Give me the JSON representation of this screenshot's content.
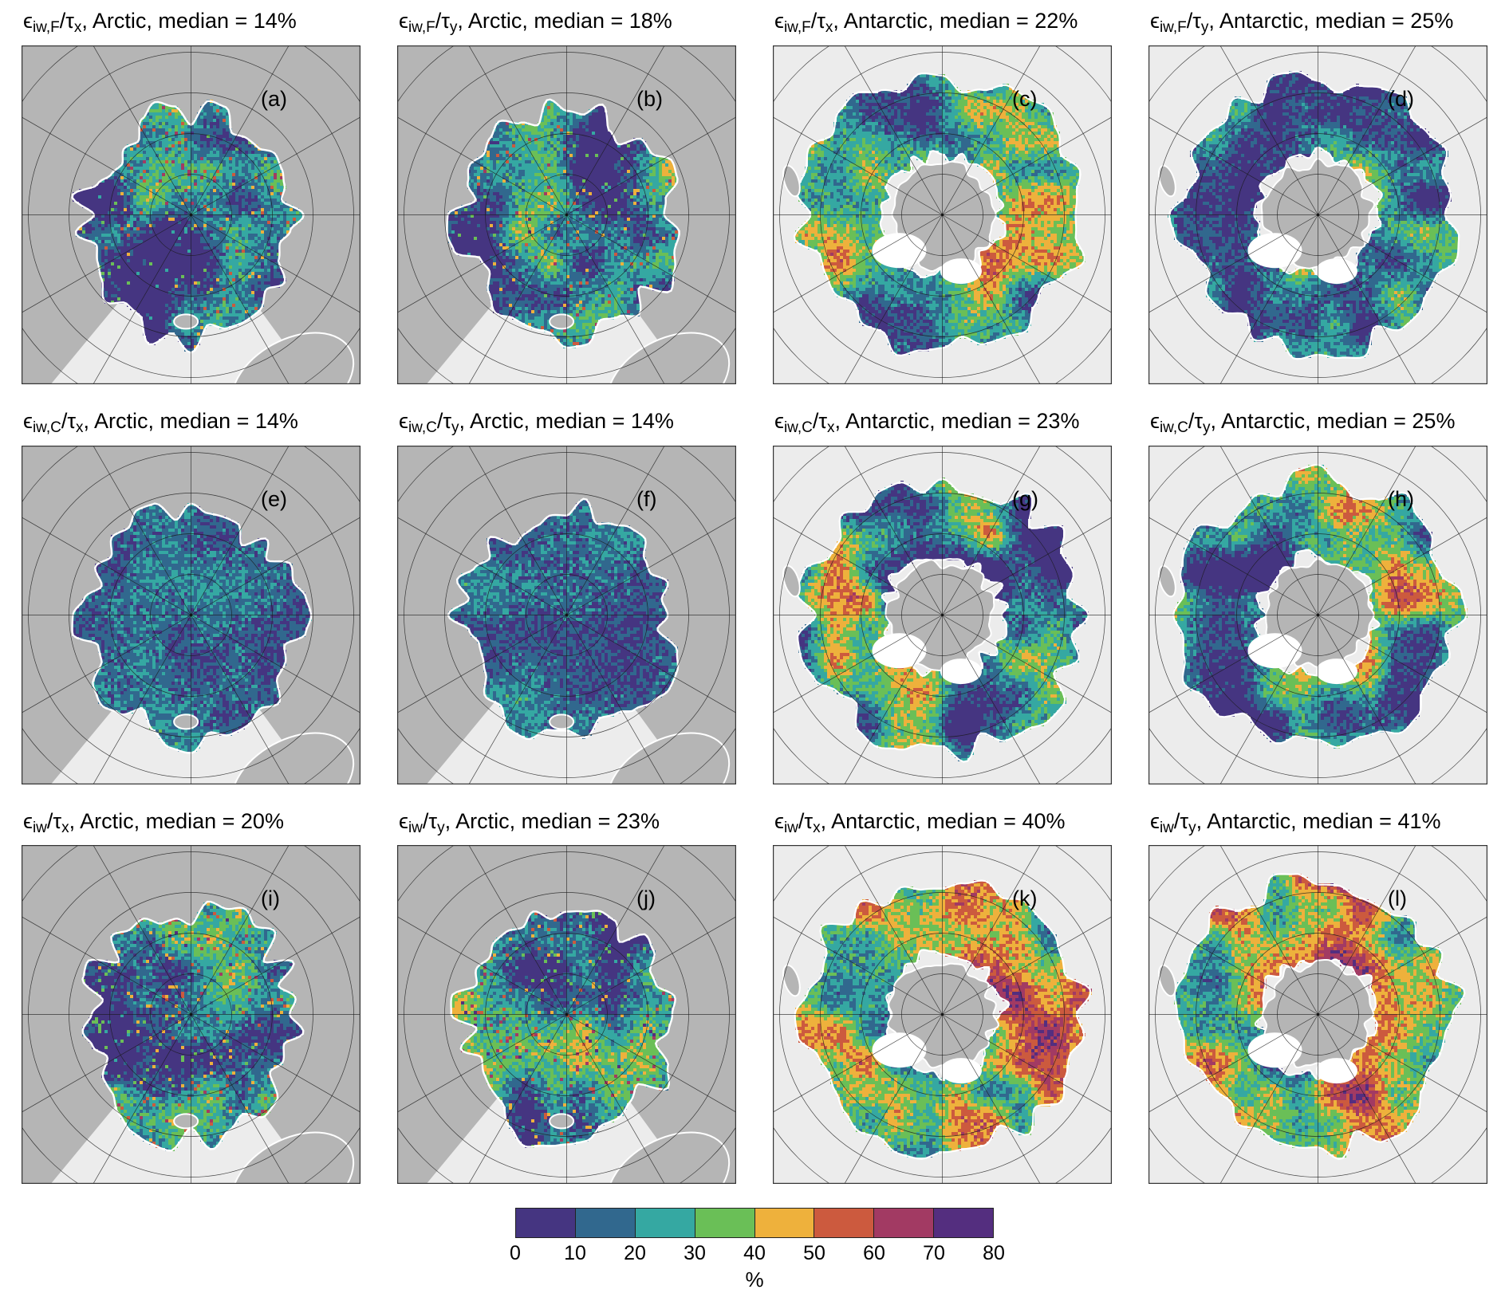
{
  "chart_data": {
    "type": "heatmap",
    "layout": "3x4 grid of polar-stereographic map panels sharing one discrete colorbar",
    "symbols": {
      "epsilon": "ϵ",
      "slash": "/",
      "tau": "τ"
    },
    "panels": [
      {
        "label": "(a)",
        "eps_sub": "iw,F",
        "tau_sub": "x",
        "region": "Arctic",
        "median_percent": 14,
        "rest": ", Arctic, median = 14%"
      },
      {
        "label": "(b)",
        "eps_sub": "iw,F",
        "tau_sub": "y",
        "region": "Arctic",
        "median_percent": 18,
        "rest": ", Arctic, median = 18%"
      },
      {
        "label": "(c)",
        "eps_sub": "iw,F",
        "tau_sub": "x",
        "region": "Antarctic",
        "median_percent": 22,
        "rest": ", Antarctic, median = 22%"
      },
      {
        "label": "(d)",
        "eps_sub": "iw,F",
        "tau_sub": "y",
        "region": "Antarctic",
        "median_percent": 25,
        "rest": ", Antarctic, median = 25%"
      },
      {
        "label": "(e)",
        "eps_sub": "iw,C",
        "tau_sub": "x",
        "region": "Arctic",
        "median_percent": 14,
        "rest": ", Arctic, median = 14%"
      },
      {
        "label": "(f)",
        "eps_sub": "iw,C",
        "tau_sub": "y",
        "region": "Arctic",
        "median_percent": 14,
        "rest": ", Arctic, median = 14%"
      },
      {
        "label": "(g)",
        "eps_sub": "iw,C",
        "tau_sub": "x",
        "region": "Antarctic",
        "median_percent": 23,
        "rest": ", Antarctic, median = 23%"
      },
      {
        "label": "(h)",
        "eps_sub": "iw,C",
        "tau_sub": "y",
        "region": "Antarctic",
        "median_percent": 25,
        "rest": ", Antarctic, median = 25%"
      },
      {
        "label": "(i)",
        "eps_sub": "iw",
        "tau_sub": "x",
        "region": "Arctic",
        "median_percent": 20,
        "rest": ", Arctic, median = 20%"
      },
      {
        "label": "(j)",
        "eps_sub": "iw",
        "tau_sub": "y",
        "region": "Arctic",
        "median_percent": 23,
        "rest": ", Arctic, median = 23%"
      },
      {
        "label": "(k)",
        "eps_sub": "iw",
        "tau_sub": "x",
        "region": "Antarctic",
        "median_percent": 40,
        "rest": ", Antarctic, median = 40%"
      },
      {
        "label": "(l)",
        "eps_sub": "iw",
        "tau_sub": "y",
        "region": "Antarctic",
        "median_percent": 41,
        "rest": ", Antarctic, median = 41%"
      }
    ],
    "colorbar": {
      "ticks": [
        0,
        10,
        20,
        30,
        40,
        50,
        60,
        70,
        80
      ],
      "tick_labels": [
        "0",
        "10",
        "20",
        "30",
        "40",
        "50",
        "60",
        "70",
        "80"
      ],
      "unit": "%",
      "colors": [
        "#453581",
        "#31688e",
        "#35a8a2",
        "#6abf57",
        "#eeb13c",
        "#cc5a3e",
        "#a23a63",
        "#542e7f"
      ]
    }
  },
  "map_colors": {
    "land": "#b5b5b5",
    "ocean": "#ececec",
    "coastline": "#ffffff",
    "graticule": "#2b2b2b",
    "panel_border": "#333333",
    "background": "#ffffff"
  }
}
